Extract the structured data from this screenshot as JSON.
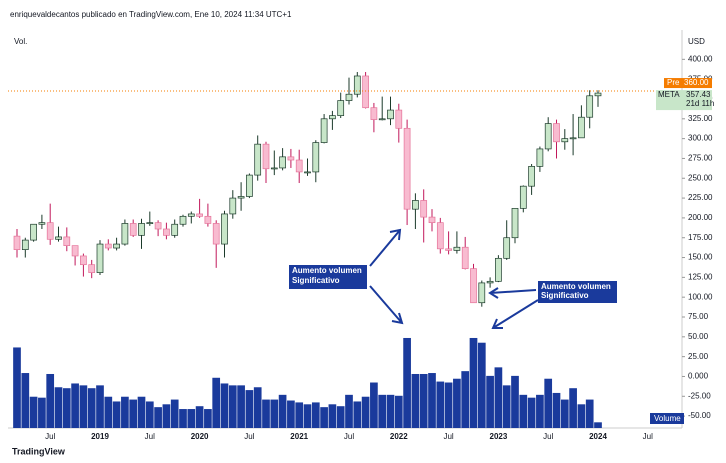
{
  "chart_data": {
    "type": "candlestick",
    "header": "enriquevaldecantos publicado en TradingView.com, Ene 10, 2024 11:34 UTC+1",
    "volume_indicator": "Vol.",
    "currency": "USD",
    "symbol": "META",
    "last_value": 357.43,
    "countdown": "21d 11h",
    "premarket_label": "Pre",
    "premarket_value": {
      "value": 360,
      "label": "360.00"
    },
    "up_color": "#c8e6c9",
    "down_color": "#f8bbd0",
    "premarket_color": "#f57c00",
    "last_color": "#c8e6c9",
    "categories": [
      null,
      null,
      null,
      null,
      "Jul",
      null,
      null,
      null,
      null,
      null,
      "2019",
      null,
      null,
      null,
      null,
      null,
      "Jul",
      null,
      null,
      null,
      null,
      null,
      "2020",
      null,
      null,
      null,
      null,
      null,
      "Jul",
      null,
      null,
      null,
      null,
      null,
      "2021",
      null,
      null,
      null,
      null,
      null,
      "Jul",
      null,
      null,
      null,
      null,
      null,
      "2022",
      null,
      null,
      null,
      null,
      null,
      "Jul",
      null,
      null,
      null,
      null,
      null,
      "2023",
      null,
      null,
      null,
      null,
      null,
      "Jul",
      null,
      null,
      null,
      null,
      null,
      "2024",
      null,
      null,
      null,
      null,
      null,
      "Jul"
    ],
    "open": [
      177,
      160,
      172,
      192,
      194,
      173,
      176,
      165,
      152,
      141,
      131,
      167,
      162,
      167,
      193,
      178,
      193,
      194,
      186,
      178,
      192,
      202,
      205,
      202,
      193,
      167,
      205,
      225,
      227,
      254,
      293,
      262,
      263,
      277,
      273,
      258,
      258,
      295,
      325,
      329,
      348,
      356,
      379,
      339,
      324,
      325,
      336,
      313,
      211,
      222,
      201,
      194,
      161,
      159,
      163,
      136,
      93,
      118,
      120,
      149,
      175,
      212,
      240,
      265,
      287,
      319,
      296,
      300,
      301,
      327,
      354,
      null,
      null,
      null,
      null,
      null,
      null
    ],
    "high": [
      186,
      175,
      192,
      204,
      218,
      189,
      188,
      165,
      155,
      147,
      172,
      173,
      175,
      198,
      198,
      199,
      208,
      197,
      194,
      198,
      204,
      208,
      224,
      218,
      197,
      209,
      235,
      245,
      256,
      304,
      296,
      285,
      288,
      287,
      286,
      275,
      298,
      331,
      335,
      358,
      377,
      384,
      384,
      345,
      353,
      353,
      344,
      324,
      231,
      236,
      211,
      200,
      183,
      183,
      176,
      142,
      121,
      125,
      153,
      197,
      212,
      241,
      268,
      290,
      327,
      324,
      312,
      331,
      342,
      361,
      361,
      null,
      null,
      null,
      null,
      null,
      null
    ],
    "low": [
      150,
      150,
      170,
      186,
      166,
      170,
      158,
      140,
      126,
      124,
      128,
      159,
      159,
      165,
      176,
      161,
      190,
      177,
      173,
      175,
      189,
      193,
      200,
      189,
      137,
      150,
      199,
      209,
      225,
      247,
      244,
      254,
      260,
      263,
      244,
      253,
      245,
      294,
      311,
      326,
      343,
      352,
      338,
      308,
      323,
      317,
      295,
      191,
      186,
      169,
      183,
      155,
      154,
      155,
      135,
      93,
      88,
      112,
      119,
      147,
      168,
      207,
      229,
      258,
      284,
      275,
      286,
      279,
      301,
      313,
      340,
      null,
      null,
      null,
      null,
      null,
      null
    ],
    "close": [
      160,
      172,
      192,
      194,
      173,
      176,
      165,
      152,
      141,
      131,
      167,
      162,
      167,
      193,
      178,
      193,
      194,
      186,
      178,
      192,
      202,
      205,
      202,
      193,
      167,
      205,
      225,
      227,
      254,
      293,
      262,
      263,
      277,
      273,
      258,
      258,
      295,
      325,
      329,
      348,
      356,
      379,
      339,
      324,
      325,
      336,
      313,
      211,
      222,
      201,
      194,
      161,
      159,
      163,
      136,
      93,
      118,
      120,
      149,
      175,
      212,
      240,
      265,
      287,
      319,
      296,
      300,
      301,
      327,
      354,
      357.43,
      null,
      null,
      null,
      null,
      null,
      null
    ],
    "series": [
      {
        "name": "Volume",
        "color": "#1a3a9c",
        "axis": "y2",
        "values": [
          850,
          580,
          330,
          320,
          570,
          430,
          420,
          470,
          450,
          420,
          450,
          330,
          280,
          330,
          300,
          330,
          280,
          220,
          250,
          300,
          200,
          200,
          230,
          200,
          530,
          470,
          450,
          450,
          400,
          430,
          300,
          300,
          350,
          290,
          270,
          250,
          270,
          220,
          250,
          230,
          350,
          280,
          330,
          480,
          350,
          350,
          340,
          950,
          570,
          570,
          580,
          490,
          480,
          520,
          600,
          950,
          900,
          550,
          640,
          450,
          550,
          350,
          320,
          350,
          520,
          370,
          300,
          420,
          250,
          300,
          60,
          null,
          null,
          null,
          null,
          null,
          null
        ]
      }
    ],
    "ylim": [
      -65,
      437
    ],
    "y2lim": [
      0,
      4200
    ],
    "yticks": [
      {
        "value": 400,
        "label": "400.00"
      },
      {
        "value": 375,
        "label": "375.00"
      },
      {
        "value": 350,
        "label": "350.00"
      },
      {
        "value": 325,
        "label": "325.00"
      },
      {
        "value": 300,
        "label": "300.00"
      },
      {
        "value": 275,
        "label": "275.00"
      },
      {
        "value": 250,
        "label": "250.00"
      },
      {
        "value": 225,
        "label": "225.00"
      },
      {
        "value": 200,
        "label": "200.00"
      },
      {
        "value": 175,
        "label": "175.00"
      },
      {
        "value": 150,
        "label": "150.00"
      },
      {
        "value": 125,
        "label": "125.00"
      },
      {
        "value": 100,
        "label": "100.00"
      },
      {
        "value": 75,
        "label": "75.00"
      },
      {
        "value": 50,
        "label": "50.00"
      },
      {
        "value": 25,
        "label": "25.00"
      },
      {
        "value": 0,
        "label": "0.000"
      },
      {
        "value": -25,
        "label": "-25.00"
      },
      {
        "value": -50,
        "label": "-50.00"
      }
    ],
    "annotations": [
      {
        "lines": [
          "Aumento volumen",
          "Significativo"
        ]
      },
      {
        "lines": [
          "Aumento volumen",
          "Significativo"
        ]
      }
    ],
    "branding": "TradingView"
  }
}
